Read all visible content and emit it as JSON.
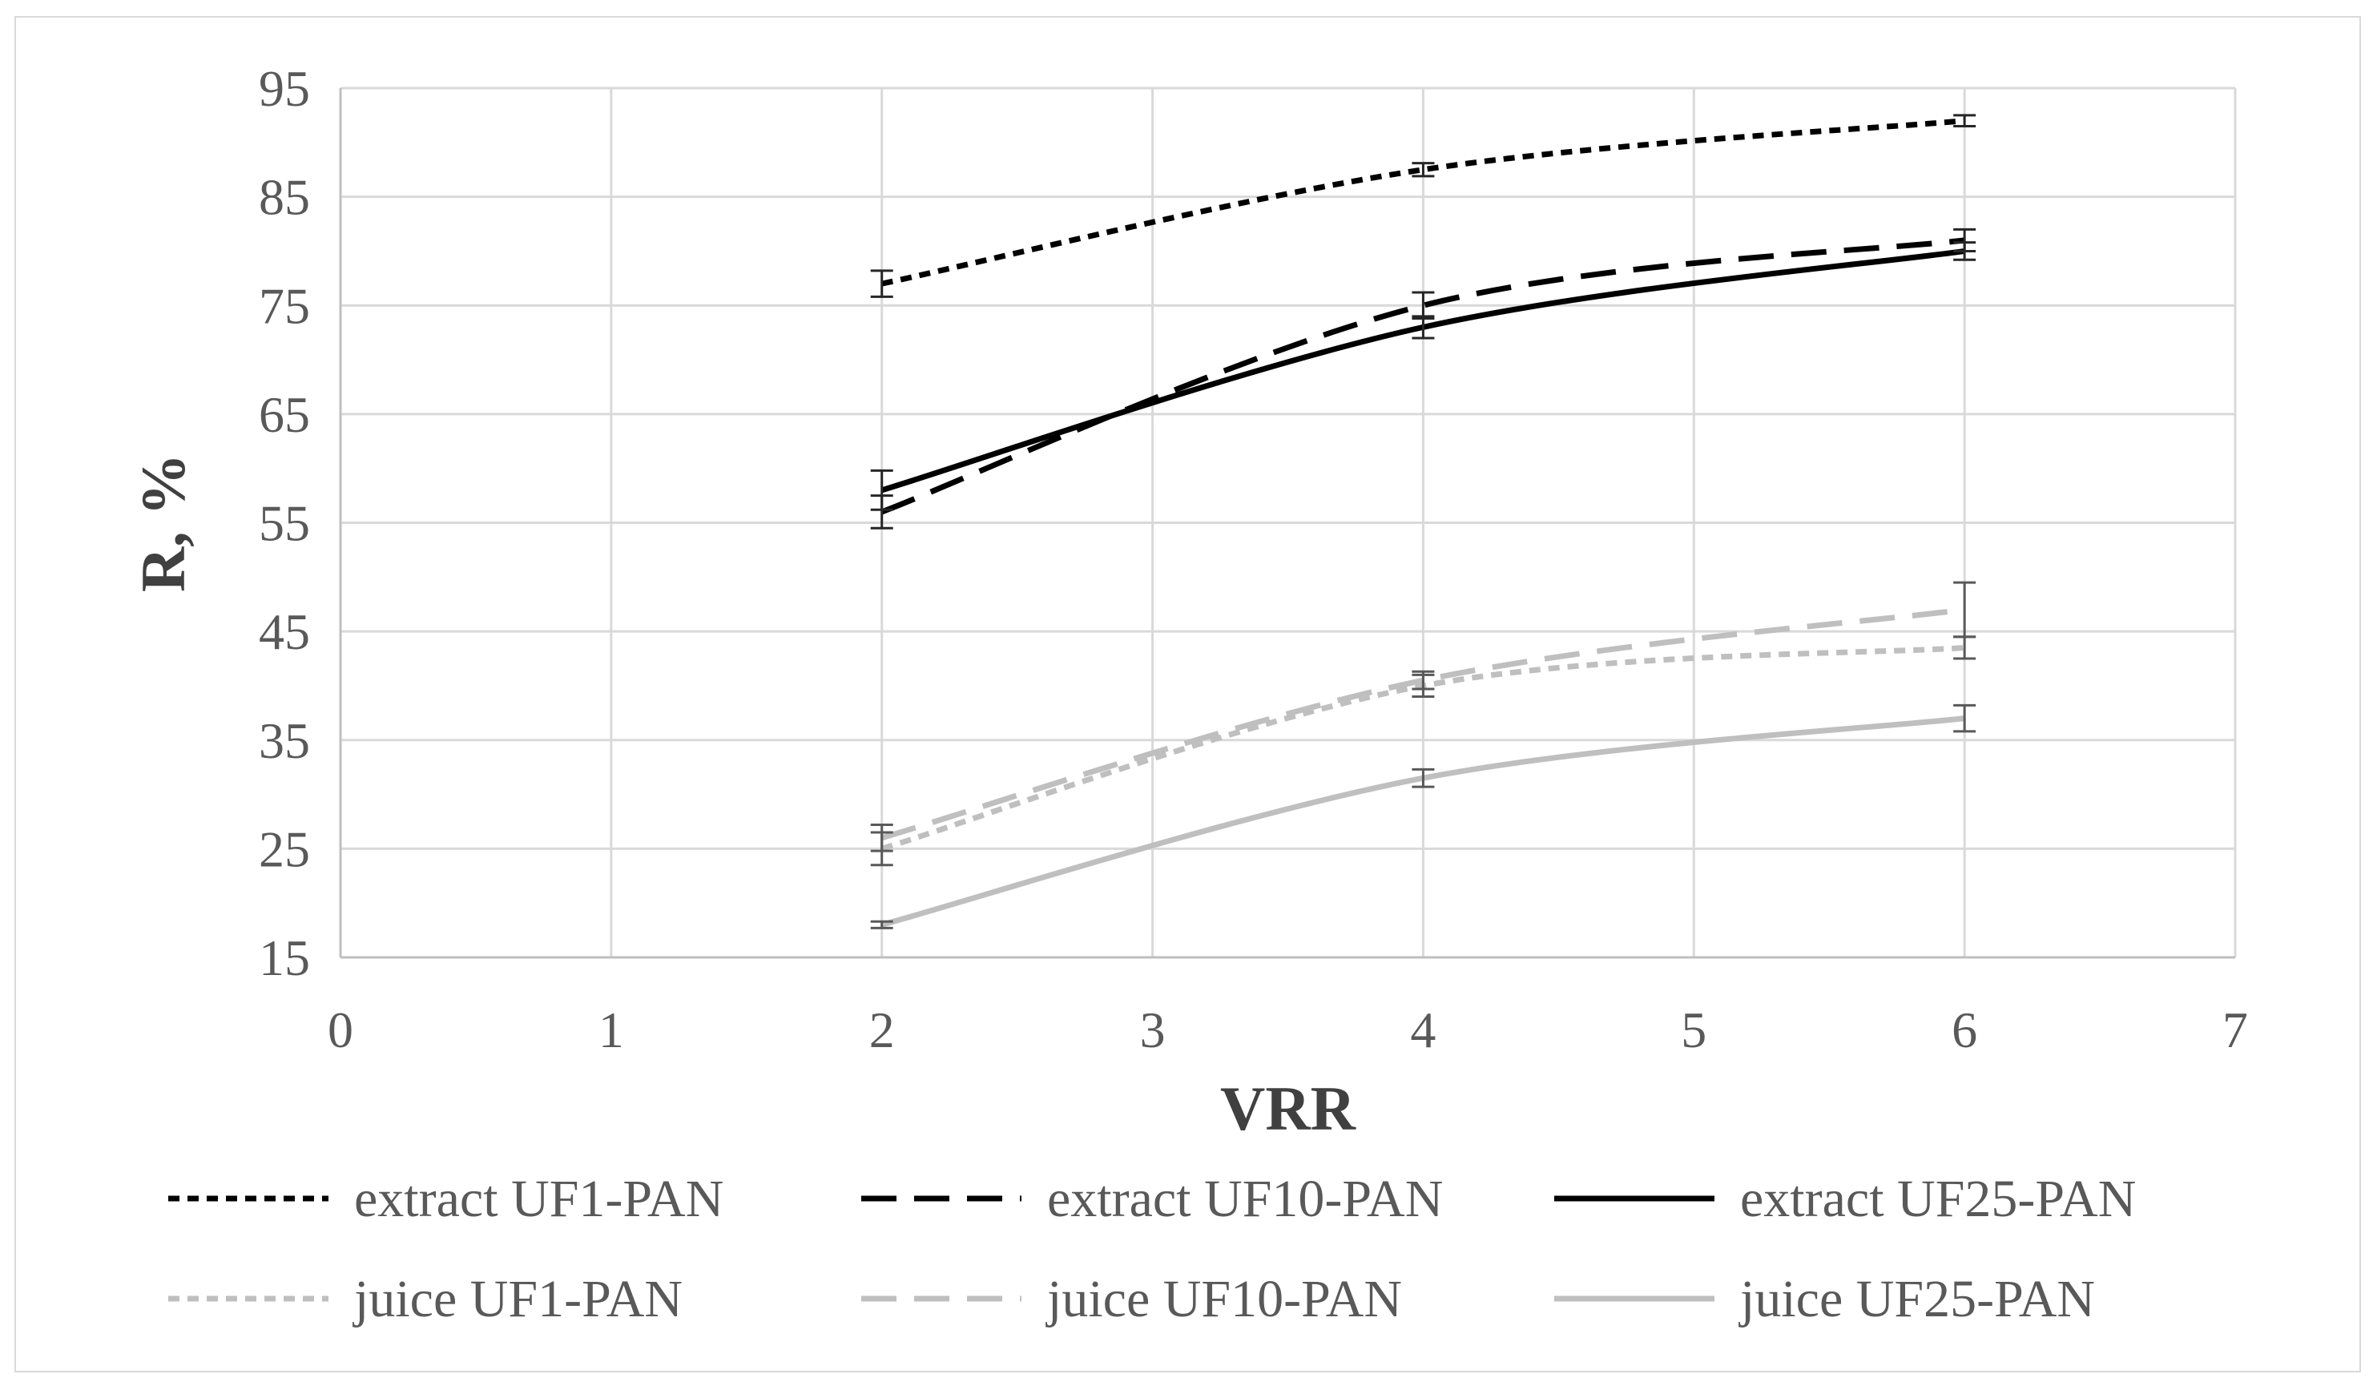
{
  "chart_data": {
    "type": "line",
    "xlabel": "VRR",
    "ylabel": "R, %",
    "xlim": [
      0,
      7
    ],
    "ylim": [
      15,
      95
    ],
    "x_ticks": [
      0,
      1,
      2,
      3,
      4,
      5,
      6,
      7
    ],
    "y_ticks": [
      15,
      25,
      35,
      45,
      55,
      65,
      75,
      85,
      95
    ],
    "grid": true,
    "legend_position": "bottom",
    "series": [
      {
        "name": "extract UF1-PAN",
        "color": "#000000",
        "dash": "short-dash",
        "x": [
          2,
          4,
          6
        ],
        "y": [
          77,
          87.5,
          92
        ],
        "error": [
          1.2,
          0.6,
          0.5
        ]
      },
      {
        "name": "extract UF10-PAN",
        "color": "#000000",
        "dash": "long-dash",
        "x": [
          2,
          4,
          6
        ],
        "y": [
          56,
          75,
          81
        ],
        "error": [
          1.5,
          1.2,
          1.0
        ]
      },
      {
        "name": "extract UF25-PAN",
        "color": "#000000",
        "dash": "solid",
        "x": [
          2,
          4,
          6
        ],
        "y": [
          58,
          73,
          80
        ],
        "error": [
          1.8,
          1.0,
          0.8
        ]
      },
      {
        "name": "juice UF1-PAN",
        "color": "#bfbfbf",
        "dash": "short-dash",
        "x": [
          2,
          4,
          6
        ],
        "y": [
          25,
          40,
          43.5
        ],
        "error": [
          1.5,
          1.0,
          1.0
        ]
      },
      {
        "name": "juice UF10-PAN",
        "color": "#bfbfbf",
        "dash": "long-dash",
        "x": [
          2,
          4,
          6
        ],
        "y": [
          26,
          40.5,
          47
        ],
        "error": [
          1.2,
          0.8,
          2.5
        ]
      },
      {
        "name": "juice UF25-PAN",
        "color": "#bfbfbf",
        "dash": "solid",
        "x": [
          2,
          4,
          6
        ],
        "y": [
          18,
          31.5,
          37
        ],
        "error": [
          0.3,
          0.8,
          1.2
        ]
      }
    ]
  }
}
